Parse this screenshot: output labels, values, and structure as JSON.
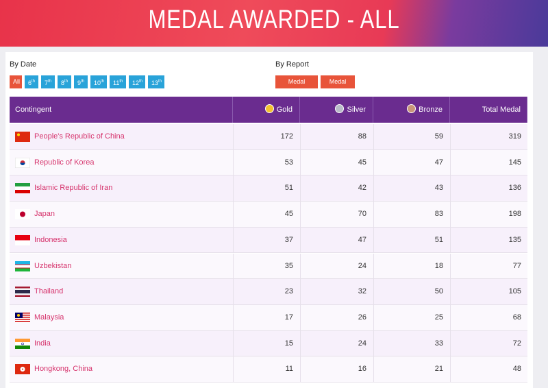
{
  "header": {
    "title": "MEDAL AWARDED - ALL"
  },
  "filters": {
    "by_date": {
      "label": "By Date",
      "buttons": [
        {
          "num": "All"
        },
        {
          "num": "6",
          "sup": "th"
        },
        {
          "num": "7",
          "sup": "th"
        },
        {
          "num": "8",
          "sup": "th"
        },
        {
          "num": "9",
          "sup": "th"
        },
        {
          "num": "10",
          "sup": "th"
        },
        {
          "num": "11",
          "sup": "th"
        },
        {
          "num": "12",
          "sup": "th"
        },
        {
          "num": "13",
          "sup": "th"
        }
      ]
    },
    "by_report": {
      "label": "By Report",
      "buttons": [
        "Medal Awarded",
        "Medal Audit"
      ]
    }
  },
  "table": {
    "columns": [
      "Contingent",
      "Gold",
      "Silver",
      "Bronze",
      "Total Medal"
    ],
    "rows": [
      [
        "People's Republic of China",
        172,
        88,
        59,
        319
      ],
      [
        "Republic of Korea",
        53,
        45,
        47,
        145
      ],
      [
        "Islamic Republic of Iran",
        51,
        42,
        43,
        136
      ],
      [
        "Japan",
        45,
        70,
        83,
        198
      ],
      [
        "Indonesia",
        37,
        47,
        51,
        135
      ],
      [
        "Uzbekistan",
        35,
        24,
        18,
        77
      ],
      [
        "Thailand",
        23,
        32,
        50,
        105
      ],
      [
        "Malaysia",
        17,
        26,
        25,
        68
      ],
      [
        "India",
        15,
        24,
        33,
        72
      ],
      [
        "Hongkong, China",
        11,
        16,
        21,
        48
      ]
    ]
  }
}
